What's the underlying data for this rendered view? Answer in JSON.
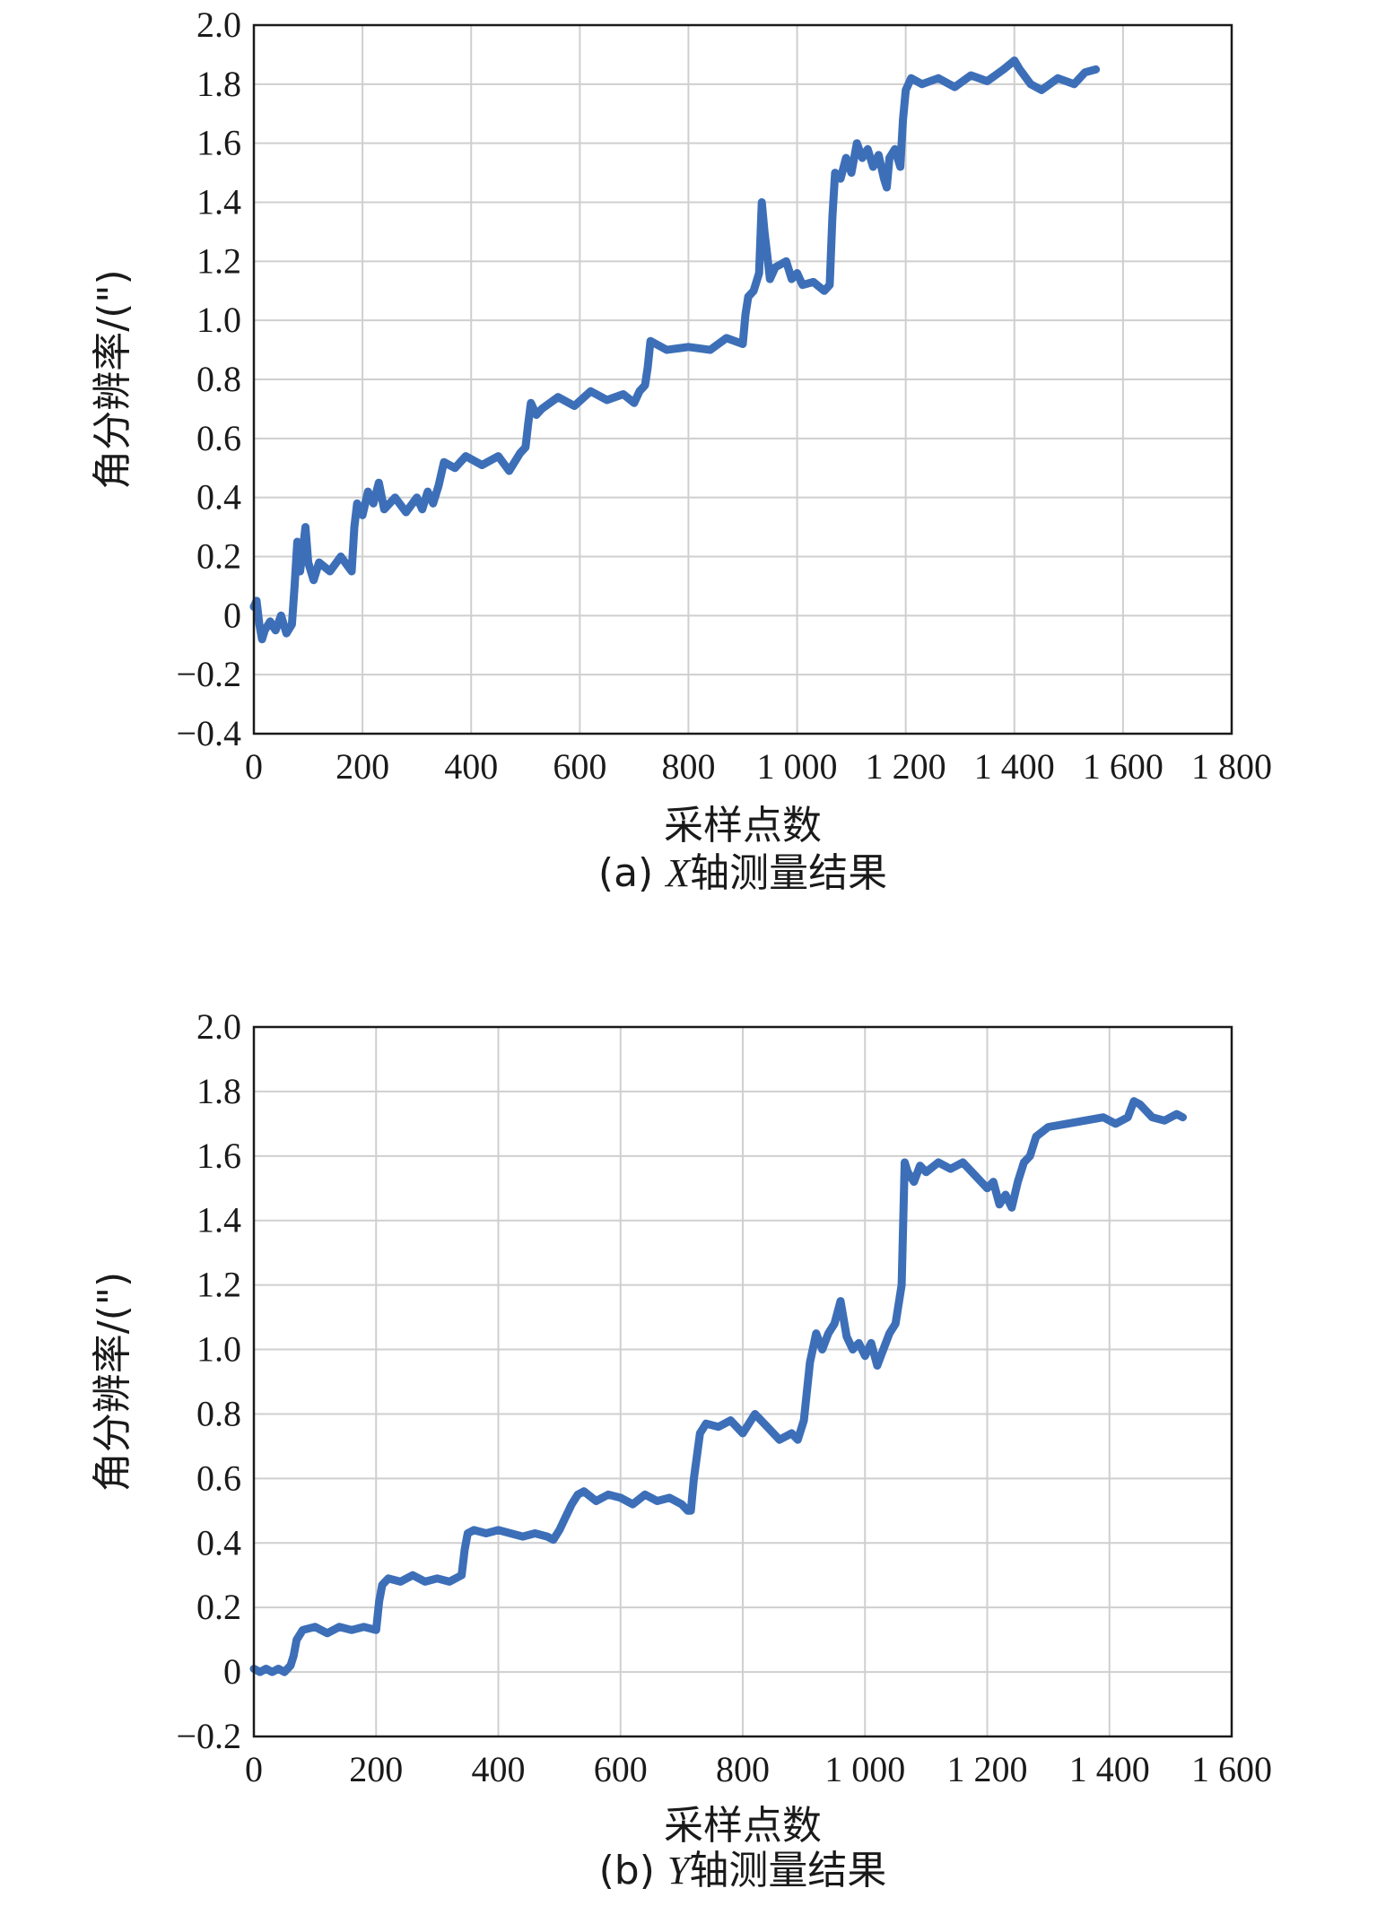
{
  "colors": {
    "line": "#3d6fb8",
    "grid": "#cfcfcf",
    "axis": "#1a1a1a"
  },
  "chart_data": [
    {
      "type": "line",
      "caption_prefix": "(a) ",
      "caption_axis": "X",
      "caption_rest": "轴测量结果",
      "xlabel": "采样点数",
      "ylabel": "角分辨率/(\")",
      "xlim": [
        0,
        1800
      ],
      "ylim": [
        -0.4,
        2.0
      ],
      "grid": true,
      "xticks": [
        0,
        200,
        400,
        600,
        800,
        1000,
        1200,
        1400,
        1600,
        1800
      ],
      "xtick_labels": [
        "0",
        "200",
        "400",
        "600",
        "800",
        "1 000",
        "1 200",
        "1 400",
        "1 600",
        "1 800"
      ],
      "yticks": [
        -0.4,
        -0.2,
        0,
        0.2,
        0.4,
        0.6,
        0.8,
        1.0,
        1.2,
        1.4,
        1.6,
        1.8,
        2.0
      ],
      "ytick_labels": [
        "−0.4",
        "−0.2",
        "0",
        "0.2",
        "0.4",
        "0.6",
        "0.8",
        "1.0",
        "1.2",
        "1.4",
        "1.6",
        "1.8",
        "2.0"
      ],
      "series": [
        {
          "x": [
            0,
            5,
            10,
            15,
            20,
            30,
            40,
            50,
            60,
            70,
            75,
            80,
            85,
            90,
            95,
            100,
            110,
            120,
            140,
            160,
            180,
            185,
            190,
            200,
            210,
            220,
            230,
            240,
            260,
            280,
            300,
            310,
            320,
            330,
            340,
            350,
            370,
            390,
            420,
            450,
            470,
            490,
            500,
            505,
            510,
            520,
            530,
            560,
            590,
            620,
            650,
            680,
            700,
            710,
            720,
            725,
            730,
            760,
            800,
            840,
            870,
            900,
            905,
            910,
            920,
            930,
            935,
            940,
            945,
            950,
            960,
            980,
            990,
            1000,
            1010,
            1030,
            1050,
            1060,
            1065,
            1070,
            1080,
            1090,
            1100,
            1110,
            1120,
            1130,
            1140,
            1150,
            1160,
            1165,
            1170,
            1180,
            1190,
            1195,
            1200,
            1210,
            1230,
            1260,
            1290,
            1320,
            1350,
            1380,
            1400,
            1410,
            1430,
            1450,
            1480,
            1510,
            1530,
            1550
          ],
          "y": [
            0.03,
            0.05,
            -0.03,
            -0.08,
            -0.05,
            -0.02,
            -0.05,
            0.0,
            -0.06,
            -0.03,
            0.1,
            0.25,
            0.15,
            0.22,
            0.3,
            0.18,
            0.12,
            0.18,
            0.15,
            0.2,
            0.15,
            0.3,
            0.38,
            0.34,
            0.42,
            0.38,
            0.45,
            0.36,
            0.4,
            0.35,
            0.4,
            0.36,
            0.42,
            0.38,
            0.44,
            0.52,
            0.5,
            0.54,
            0.51,
            0.54,
            0.49,
            0.55,
            0.57,
            0.65,
            0.72,
            0.68,
            0.7,
            0.74,
            0.71,
            0.76,
            0.73,
            0.75,
            0.72,
            0.76,
            0.78,
            0.84,
            0.93,
            0.9,
            0.91,
            0.9,
            0.94,
            0.92,
            1.02,
            1.08,
            1.1,
            1.16,
            1.4,
            1.3,
            1.22,
            1.14,
            1.18,
            1.2,
            1.14,
            1.16,
            1.12,
            1.13,
            1.1,
            1.12,
            1.35,
            1.5,
            1.48,
            1.55,
            1.5,
            1.6,
            1.55,
            1.58,
            1.52,
            1.56,
            1.48,
            1.45,
            1.55,
            1.58,
            1.52,
            1.68,
            1.78,
            1.82,
            1.8,
            1.82,
            1.79,
            1.83,
            1.81,
            1.85,
            1.88,
            1.85,
            1.8,
            1.78,
            1.82,
            1.8,
            1.84,
            1.85
          ]
        }
      ]
    },
    {
      "type": "line",
      "caption_prefix": "(b) ",
      "caption_axis": "Y",
      "caption_rest": "轴测量结果",
      "xlabel": "采样点数",
      "ylabel": "角分辨率/(\")",
      "xlim": [
        0,
        1600
      ],
      "ylim": [
        -0.2,
        2.0
      ],
      "grid": true,
      "xticks": [
        0,
        200,
        400,
        600,
        800,
        1000,
        1200,
        1400,
        1600
      ],
      "xtick_labels": [
        "0",
        "200",
        "400",
        "600",
        "800",
        "1 000",
        "1 200",
        "1 400",
        "1 600"
      ],
      "yticks": [
        -0.2,
        0,
        0.2,
        0.4,
        0.6,
        0.8,
        1.0,
        1.2,
        1.4,
        1.6,
        1.8,
        2.0
      ],
      "ytick_labels": [
        "−0.2",
        "0",
        "0.2",
        "0.4",
        "0.6",
        "0.8",
        "1.0",
        "1.2",
        "1.4",
        "1.6",
        "1.8",
        "2.0"
      ],
      "series": [
        {
          "x": [
            0,
            10,
            20,
            30,
            40,
            50,
            60,
            65,
            70,
            80,
            100,
            120,
            140,
            160,
            180,
            200,
            205,
            210,
            220,
            240,
            260,
            280,
            300,
            320,
            340,
            345,
            350,
            360,
            380,
            400,
            420,
            440,
            460,
            480,
            490,
            500,
            510,
            520,
            530,
            540,
            560,
            580,
            600,
            620,
            640,
            660,
            680,
            700,
            710,
            715,
            720,
            730,
            740,
            760,
            780,
            800,
            820,
            840,
            860,
            880,
            890,
            900,
            910,
            920,
            930,
            940,
            950,
            960,
            970,
            980,
            990,
            1000,
            1010,
            1020,
            1030,
            1040,
            1050,
            1060,
            1065,
            1070,
            1080,
            1090,
            1100,
            1120,
            1140,
            1160,
            1180,
            1200,
            1210,
            1220,
            1230,
            1240,
            1250,
            1260,
            1270,
            1280,
            1300,
            1330,
            1360,
            1390,
            1410,
            1430,
            1440,
            1450,
            1470,
            1490,
            1510,
            1520
          ],
          "y": [
            0.01,
            0.0,
            0.01,
            0.0,
            0.01,
            0.0,
            0.02,
            0.05,
            0.1,
            0.13,
            0.14,
            0.12,
            0.14,
            0.13,
            0.14,
            0.13,
            0.22,
            0.27,
            0.29,
            0.28,
            0.3,
            0.28,
            0.29,
            0.28,
            0.3,
            0.38,
            0.43,
            0.44,
            0.43,
            0.44,
            0.43,
            0.42,
            0.43,
            0.42,
            0.41,
            0.44,
            0.48,
            0.52,
            0.55,
            0.56,
            0.53,
            0.55,
            0.54,
            0.52,
            0.55,
            0.53,
            0.54,
            0.52,
            0.5,
            0.5,
            0.6,
            0.74,
            0.77,
            0.76,
            0.78,
            0.74,
            0.8,
            0.76,
            0.72,
            0.74,
            0.72,
            0.78,
            0.96,
            1.05,
            1.0,
            1.05,
            1.08,
            1.15,
            1.04,
            1.0,
            1.02,
            0.98,
            1.02,
            0.95,
            1.0,
            1.05,
            1.08,
            1.2,
            1.58,
            1.55,
            1.52,
            1.57,
            1.55,
            1.58,
            1.56,
            1.58,
            1.54,
            1.5,
            1.52,
            1.45,
            1.48,
            1.44,
            1.52,
            1.58,
            1.6,
            1.66,
            1.69,
            1.7,
            1.71,
            1.72,
            1.7,
            1.72,
            1.77,
            1.76,
            1.72,
            1.71,
            1.73,
            1.72
          ]
        }
      ]
    }
  ]
}
